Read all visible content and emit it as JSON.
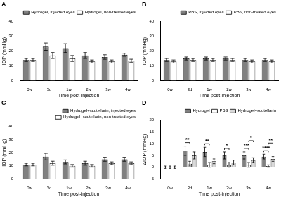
{
  "chart_data": [
    {
      "type": "bar",
      "title": "A",
      "x_label": "Time post-injection",
      "y_label": "IOP (mmHg)",
      "categories": [
        "0w",
        "3d",
        "1w",
        "2w",
        "3w",
        "4w"
      ],
      "series": [
        {
          "name": "Hydrogel, injected eyes",
          "color": "#808080",
          "values": [
            14,
            23,
            22,
            17,
            16,
            17.5
          ],
          "errors": [
            1,
            2.5,
            3,
            2,
            1.5,
            1
          ]
        },
        {
          "name": "Hydrogel, non-treated eyes",
          "color": "#ffffff",
          "values": [
            14,
            17,
            15,
            13,
            13,
            13.5
          ],
          "errors": [
            1,
            2,
            2,
            1,
            1,
            1
          ]
        }
      ],
      "ylim": [
        0,
        40
      ],
      "yticks": [
        0,
        10,
        20,
        30,
        40
      ],
      "grid": false,
      "legend": "top"
    },
    {
      "type": "bar",
      "title": "B",
      "x_label": "Time post-injection",
      "y_label": "IOP (mmHg)",
      "categories": [
        "0w",
        "3d",
        "1w",
        "2w",
        "3w",
        "4w"
      ],
      "series": [
        {
          "name": "PBS, injected eyes",
          "color": "#808080",
          "values": [
            14,
            15,
            15,
            15,
            14,
            14
          ],
          "errors": [
            1,
            1,
            1,
            1,
            1,
            1
          ]
        },
        {
          "name": "PBS, non-treated eyes",
          "color": "#ffffff",
          "values": [
            13,
            14,
            14,
            14,
            13,
            13
          ],
          "errors": [
            1,
            1,
            1,
            1,
            1,
            1
          ]
        }
      ],
      "ylim": [
        0,
        40
      ],
      "yticks": [
        0,
        10,
        20,
        30,
        40
      ],
      "grid": false,
      "legend": "top"
    },
    {
      "type": "bar",
      "title": "C",
      "x_label": "Time post-injection",
      "y_label": "IOP (mmHg)",
      "categories": [
        "0w",
        "3d",
        "1w",
        "2w",
        "3w",
        "4w"
      ],
      "series": [
        {
          "name": "Hydrogel+scutellarin, injected eyes",
          "color": "#808080",
          "values": [
            11,
            17,
            13,
            12,
            15,
            15
          ],
          "errors": [
            1,
            2.5,
            1.5,
            1.5,
            1.5,
            1.5
          ]
        },
        {
          "name": "Hydrogel+scutellarin, non-treated eyes",
          "color": "#ffffff",
          "values": [
            11,
            12,
            10,
            10,
            12,
            12
          ],
          "errors": [
            1,
            1.5,
            1,
            1,
            1,
            1
          ]
        }
      ],
      "ylim": [
        0,
        40
      ],
      "yticks": [
        0,
        10,
        20,
        30,
        40
      ],
      "grid": false,
      "legend": "top"
    },
    {
      "type": "bar",
      "title": "D",
      "x_label": "Time post-injection",
      "y_label": "ΔIOP (mmHg)",
      "categories": [
        "0w",
        "3d",
        "1w",
        "2w",
        "3w",
        "4w"
      ],
      "series": [
        {
          "name": "Hydrogel",
          "color": "#808080",
          "values": [
            0,
            7,
            6.5,
            5,
            5,
            4.5
          ],
          "errors": [
            0.5,
            2,
            2,
            1.5,
            1.5,
            1
          ]
        },
        {
          "name": "PBS",
          "color": "#ffffff",
          "values": [
            0,
            1.5,
            1,
            1,
            1,
            0.5
          ],
          "errors": [
            0.5,
            1,
            1,
            1,
            1,
            0.5
          ]
        },
        {
          "name": "Hydrogel+scutellarin",
          "color": "#d9d9d9",
          "values": [
            0,
            5,
            2.5,
            2,
            3,
            3.5
          ],
          "errors": [
            0.5,
            1.5,
            1,
            1,
            1,
            1
          ]
        }
      ],
      "annotations": [
        {
          "category": "3d",
          "between": [
            "Hydrogel",
            "PBS"
          ],
          "text": "**"
        },
        {
          "category": "1w",
          "between": [
            "Hydrogel",
            "PBS"
          ],
          "text": "**"
        },
        {
          "category": "2w",
          "between": [
            "Hydrogel",
            "PBS"
          ],
          "text": "*"
        },
        {
          "category": "3w",
          "between": [
            "Hydrogel",
            "PBS"
          ],
          "text": "***"
        },
        {
          "category": "3w",
          "between": [
            "PBS",
            "Hydrogel+scutellarin"
          ],
          "text": "*"
        },
        {
          "category": "4w",
          "between": [
            "Hydrogel",
            "PBS"
          ],
          "text": "****"
        },
        {
          "category": "4w",
          "between": [
            "PBS",
            "Hydrogel+scutellarin"
          ],
          "text": "**"
        }
      ],
      "ylim": [
        -5,
        20
      ],
      "yticks": [
        -5,
        0,
        5,
        10,
        15,
        20
      ],
      "grid": false,
      "legend": "top"
    }
  ]
}
